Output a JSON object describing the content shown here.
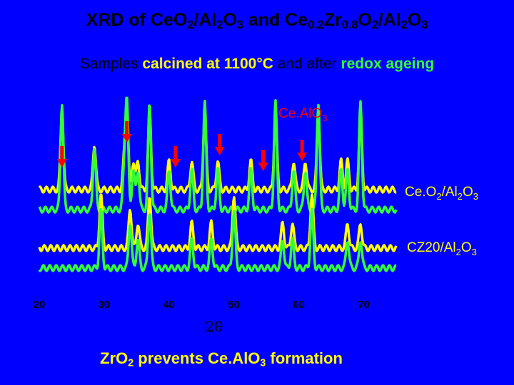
{
  "title": {
    "p1": "XRD of Ce",
    "p1_sub": "",
    "p2": "O",
    "p2_sub": "2",
    "p3": "/Al",
    "p3_sub": "2",
    "p4": "O",
    "p4_sub": "3",
    "p5": " and Ce",
    "p5_sub": "0.2",
    "p6": "Zr",
    "p6_sub": "0.8",
    "p7": "O",
    "p7_sub": "2",
    "p8": "/Al",
    "p8_sub": "2",
    "p9": "O",
    "p9_sub": "3"
  },
  "subtitle": {
    "part1": "Samples ",
    "part2": "calcined at 1100°C",
    "part3": " and after ",
    "part4": "redox ageing"
  },
  "footer": {
    "p1": "Zr",
    "p1b": "O",
    "p1_sub": "2",
    "p2": " prevents Ce.AlO",
    "p2_sub": "3",
    "p3": " formation"
  },
  "colors": {
    "background": "#0000ff",
    "calcined": "#ffff00",
    "aged": "#33ff33",
    "arrow": "#ff0000",
    "annotation_text": "#ff0000",
    "sample_label": "#ffff00"
  },
  "chart_data": {
    "type": "line",
    "xlabel": "2θ",
    "ylabel": "",
    "xlim": [
      20,
      75
    ],
    "xticks": [
      "20",
      "30",
      "40",
      "50",
      "60",
      "70"
    ],
    "xtick_values": [
      20,
      30,
      40,
      50,
      60,
      70
    ],
    "grid": false,
    "peaks_ceo2_al2o3": [
      23.5,
      28.5,
      33.1,
      33.5,
      34.5,
      35.2,
      37.0,
      40.0,
      43.5,
      45.5,
      47.5,
      52.6,
      56.4,
      59.2,
      61.0,
      63.0,
      66.5,
      67.5,
      69.5
    ],
    "peaks_cz20_al2o3": [
      29.5,
      34.0,
      35.2,
      37.0,
      43.5,
      46.5,
      50.0,
      57.5,
      59.0,
      62.0,
      67.5,
      69.5
    ],
    "series": [
      {
        "name": "Ce",
        "label_sub": "O2/Al2O3",
        "values_ref": "peaks_ceo2_al2o3",
        "condition": "calcined"
      },
      {
        "name": "",
        "values_ref": "peaks_ceo2_al2o3",
        "condition": "aged"
      },
      {
        "name": "CZ20/Al",
        "label_sub": "2O3",
        "values_ref": "peaks_cz20_al2o3",
        "condition": "calcined"
      },
      {
        "name": "",
        "values_ref": "peaks_cz20_al2o3",
        "condition": "aged"
      }
    ],
    "annotation": {
      "text": "Ce.AlO",
      "text_sub": "3",
      "arrow_positions": [
        23.5,
        33.5,
        41.0,
        47.8,
        54.5,
        60.5
      ]
    },
    "series_labels": [
      {
        "main": "Ce.O",
        "p2": "2",
        "p3": "/Al",
        "p4": "2",
        "p5": "O",
        "p6": "3"
      },
      {
        "main": "CZ20/Al",
        "p2": "2",
        "p3": "O",
        "p4": "3"
      }
    ]
  }
}
